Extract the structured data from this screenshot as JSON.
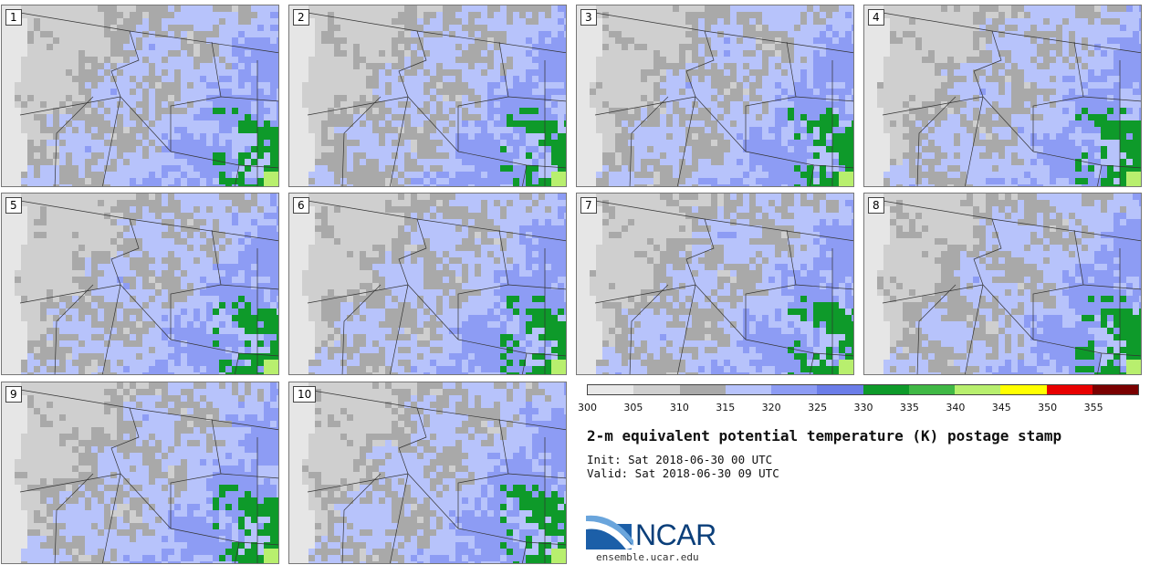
{
  "panels": [
    {
      "label": "1"
    },
    {
      "label": "2"
    },
    {
      "label": "3"
    },
    {
      "label": "4"
    },
    {
      "label": "5"
    },
    {
      "label": "6"
    },
    {
      "label": "7"
    },
    {
      "label": "8"
    },
    {
      "label": "9"
    },
    {
      "label": "10"
    }
  ],
  "colorbar": {
    "colors": [
      "#e8e8e8",
      "#cfcfcf",
      "#a9a9a9",
      "#b7c3fb",
      "#8d9cf4",
      "#6b7de8",
      "#0e9a2a",
      "#40b845",
      "#b8ef6e",
      "#ffff00",
      "#e80000",
      "#7a0000"
    ],
    "ticks": [
      "300",
      "305",
      "310",
      "315",
      "320",
      "325",
      "330",
      "335",
      "340",
      "345",
      "350",
      "355"
    ]
  },
  "title": "2-m equivalent potential temperature (K) postage stamp",
  "init": "Init: Sat 2018-06-30 00 UTC",
  "valid": "Valid: Sat 2018-06-30 09 UTC",
  "logo": {
    "name": "NCAR",
    "site": "ensemble.ucar.edu"
  }
}
